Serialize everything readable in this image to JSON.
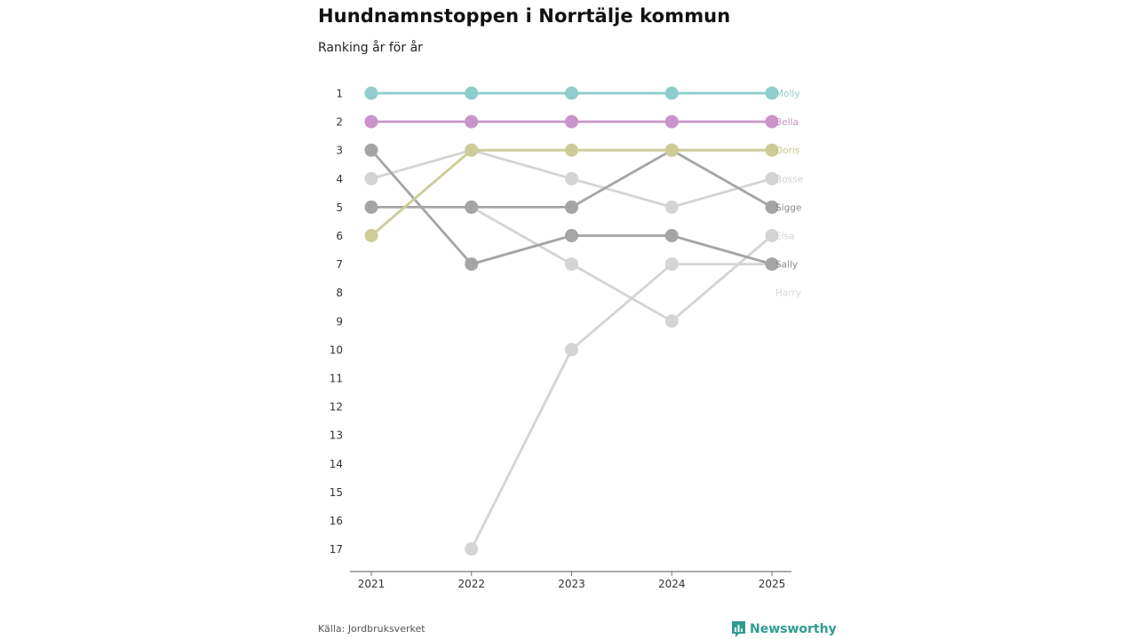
{
  "title": "Hundnamnstoppen i Norrtälje kommun",
  "subtitle": "Ranking år för år",
  "source": "Källa: Jordbruksverket",
  "brand": {
    "name": "Newsworthy",
    "icon": "newsworthy-logo-icon",
    "color": "#2e9c91"
  },
  "chart_data": {
    "type": "line",
    "x": [
      "2021",
      "2022",
      "2023",
      "2024",
      "2025"
    ],
    "y_ticks": [
      1,
      2,
      3,
      4,
      5,
      6,
      7,
      8,
      9,
      10,
      11,
      12,
      13,
      14,
      15,
      16,
      17
    ],
    "ylim": [
      1,
      17
    ],
    "y_inverted": true,
    "grid": false,
    "series": [
      {
        "name": "Harry",
        "color": "#d4d4d4",
        "values": [
          null,
          17,
          10,
          7,
          7
        ]
      },
      {
        "name": "Elsa",
        "color": "#d4d4d4",
        "values": [
          null,
          5,
          7,
          9,
          6
        ]
      },
      {
        "name": "Bosse",
        "color": "#d4d4d4",
        "values": [
          4,
          3,
          4,
          5,
          4
        ]
      },
      {
        "name": "Sally",
        "color": "#a5a5a5",
        "values": [
          3,
          7,
          6,
          6,
          7
        ]
      },
      {
        "name": "Sigge",
        "color": "#a5a5a5",
        "values": [
          5,
          5,
          5,
          3,
          5
        ]
      },
      {
        "name": "Doris",
        "color": "#cdcc98",
        "values": [
          6,
          3,
          3,
          3,
          3
        ]
      },
      {
        "name": "Bella",
        "color": "#c994c9",
        "values": [
          2,
          2,
          2,
          2,
          2
        ]
      },
      {
        "name": "Molly",
        "color": "#8ecdcb",
        "values": [
          1,
          1,
          1,
          1,
          1
        ]
      }
    ],
    "end_labels": [
      {
        "name": "Molly",
        "rank": 1
      },
      {
        "name": "Bella",
        "rank": 2
      },
      {
        "name": "Doris",
        "rank": 3
      },
      {
        "name": "Bosse",
        "rank": 4
      },
      {
        "name": "Sigge",
        "rank": 5
      },
      {
        "name": "Elsa",
        "rank": 6
      },
      {
        "name": "Sally",
        "rank": 7
      },
      {
        "name": "Harry",
        "rank": 8
      }
    ],
    "end_label_colors": {
      "Molly": "#8ecdcb",
      "Bella": "#c994c9",
      "Doris": "#c8c88a",
      "Bosse": "#cfcfcf",
      "Sigge": "#8a8a8a",
      "Elsa": "#cfcfcf",
      "Sally": "#8a8a8a",
      "Harry": "#d8d8d8"
    },
    "axis_color": "#777777"
  }
}
